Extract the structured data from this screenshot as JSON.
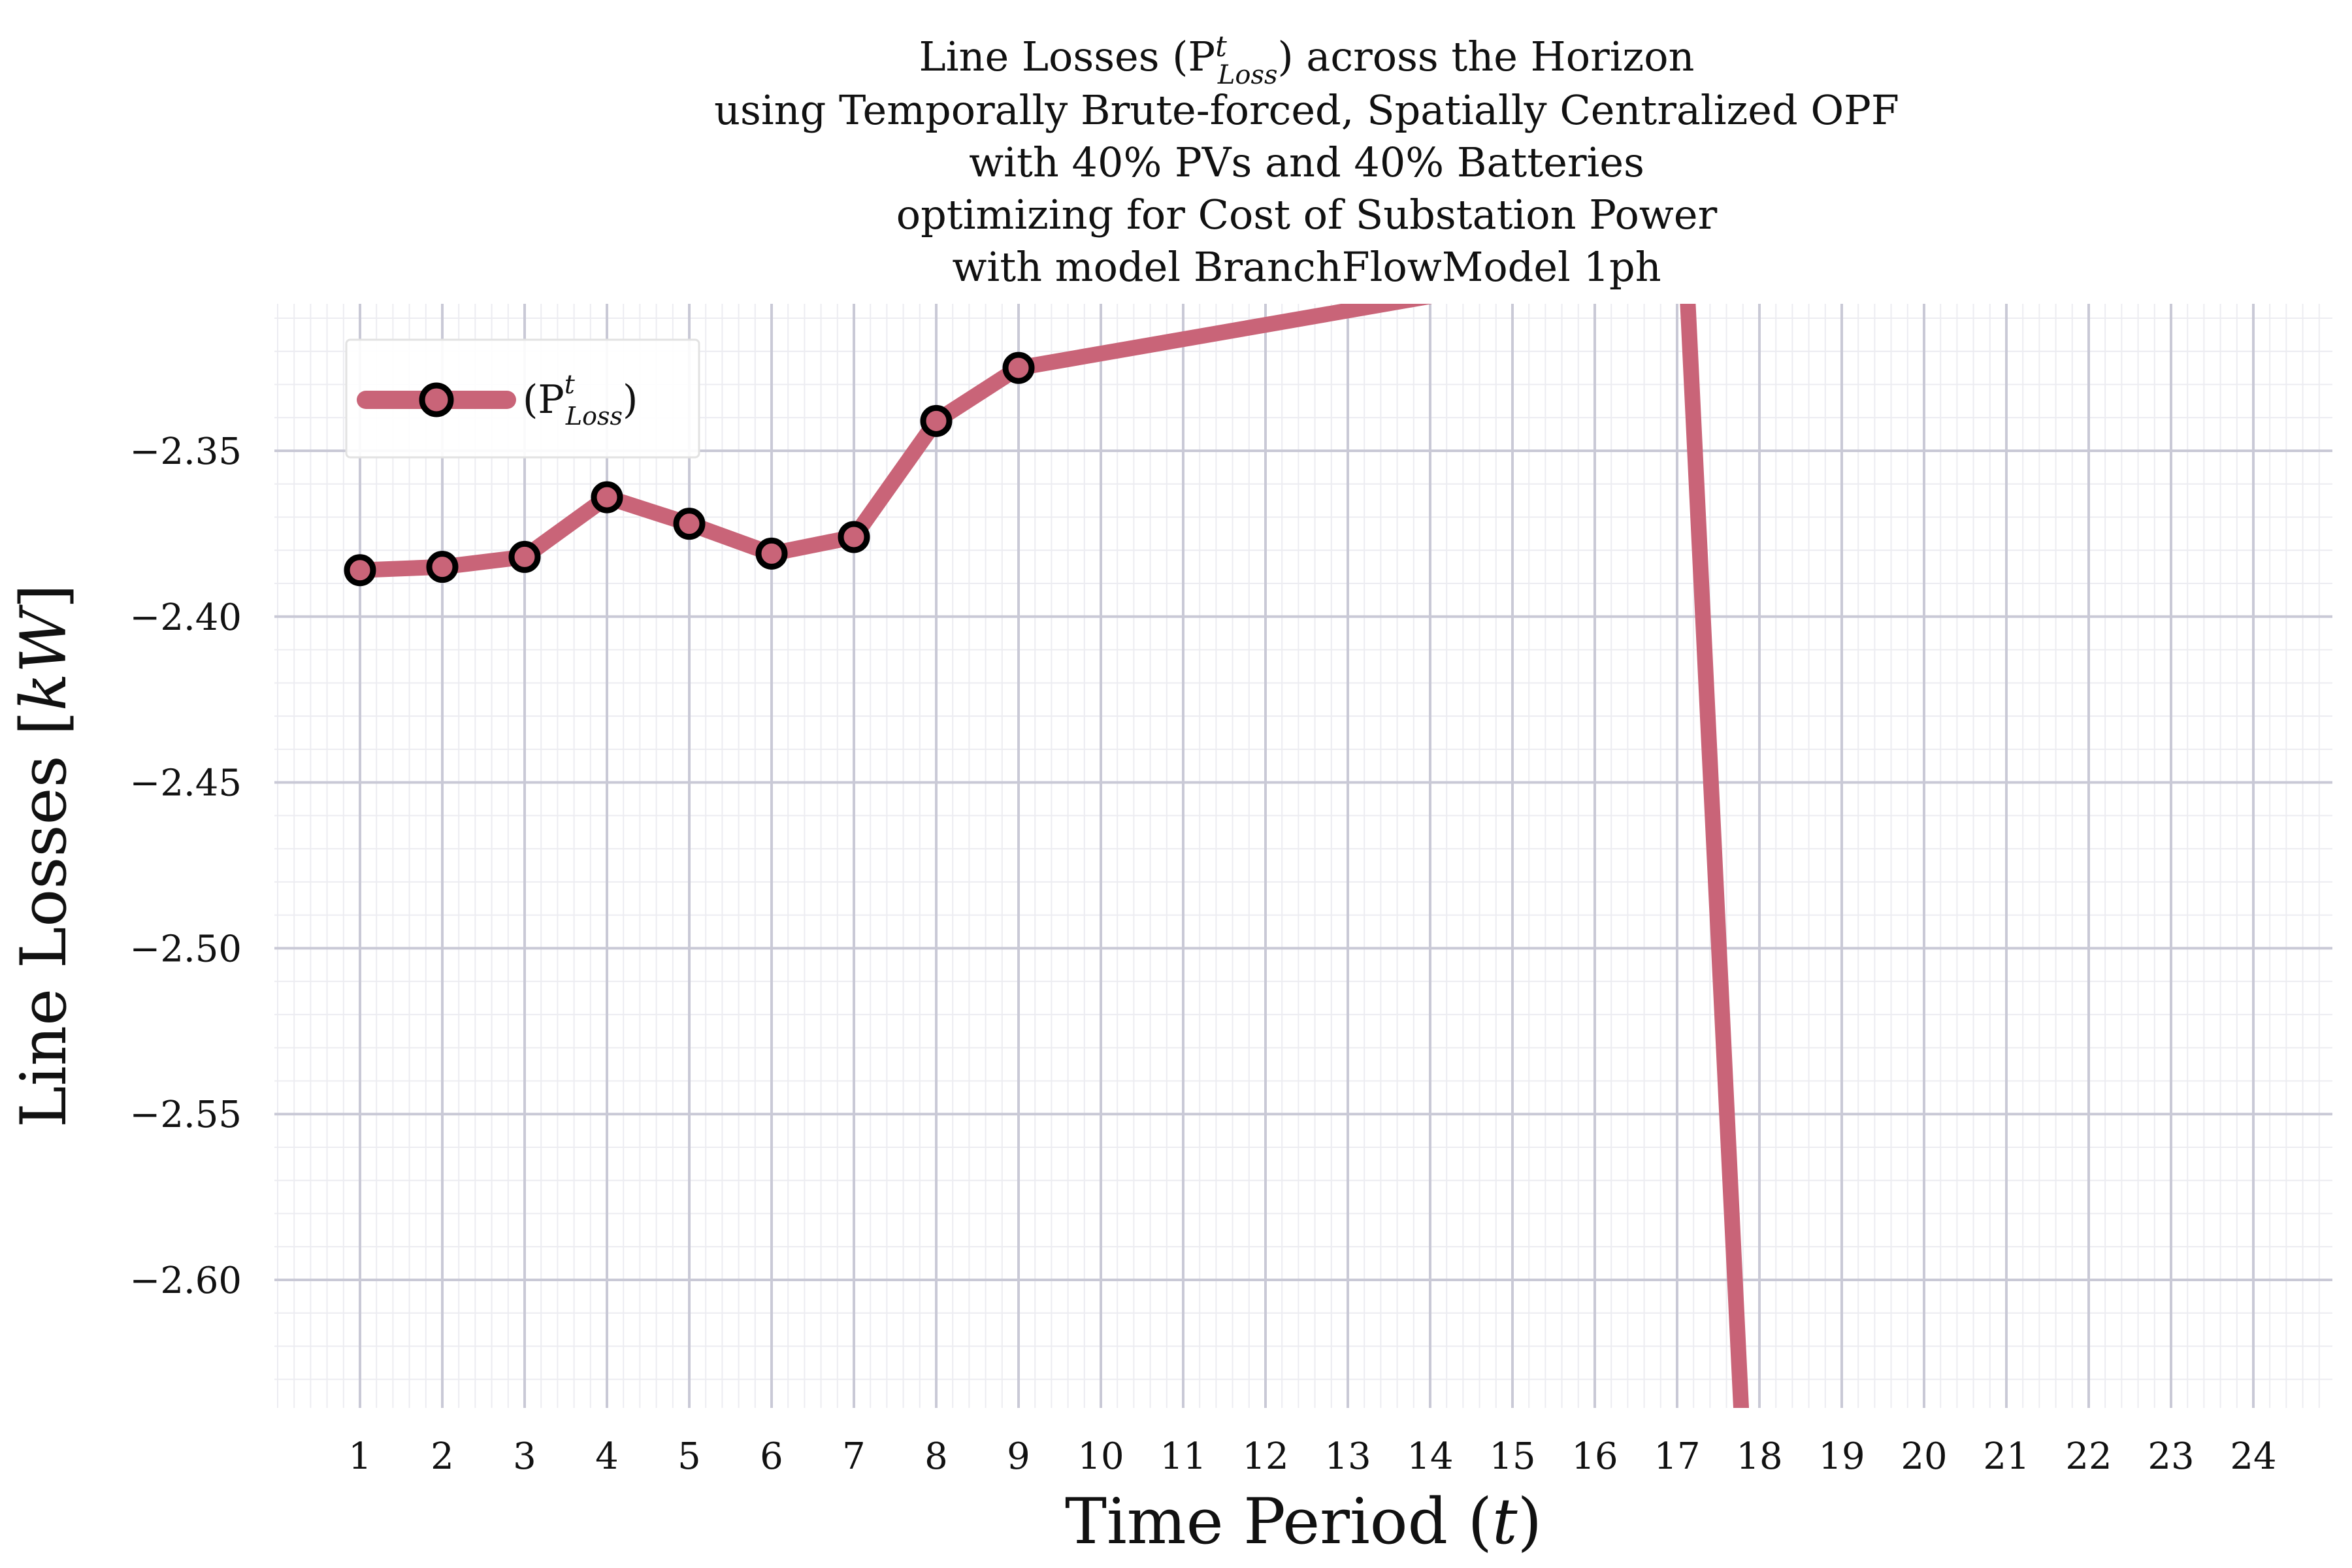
{
  "chart_data": {
    "type": "line",
    "title": [
      "Line Losses (P^t_Loss) across the Horizon",
      "using Temporally Brute-forced, Spatially Centralized OPF",
      "with 40% PVs and 40% Batteries",
      "optimizing for Cost of Substation Power",
      "with model BranchFlowModel 1ph"
    ],
    "title_parts": {
      "line1_prefix": "Line Losses (P",
      "line1_sup": "t",
      "line1_sub": "Loss",
      "line1_suffix": ") across the Horizon"
    },
    "xlabel": "Time Period (t)",
    "xlabel_parts": {
      "prefix": "Time Period (",
      "var": "t",
      "suffix": ")"
    },
    "ylabel": "Line Losses [kW]",
    "ylabel_parts": {
      "prefix": "Line Losses [",
      "var": "kW",
      "suffix": "]"
    },
    "x_ticks": [
      "1",
      "2",
      "3",
      "4",
      "5",
      "6",
      "7",
      "8",
      "9",
      "10",
      "11",
      "12",
      "13",
      "14",
      "15",
      "16",
      "17",
      "18",
      "19",
      "20",
      "21",
      "22",
      "23",
      "24"
    ],
    "y_ticks": [
      {
        "value": -2.35,
        "label": "−2.35"
      },
      {
        "value": -2.4,
        "label": "−2.40"
      },
      {
        "value": -2.45,
        "label": "−2.45"
      },
      {
        "value": -2.5,
        "label": "−2.50"
      },
      {
        "value": -2.55,
        "label": "−2.55"
      },
      {
        "value": -2.6,
        "label": "−2.60"
      }
    ],
    "xlim": [
      0,
      25.0
    ],
    "ylim": [
      -2.64,
      -2.306
    ],
    "grid": true,
    "legend_position": "top-left",
    "series": [
      {
        "name": "(P^t_Loss)",
        "legend_parts": {
          "prefix": "(P",
          "sup": "t",
          "sub": "Loss",
          "suffix": ")"
        },
        "color": "#c96478",
        "marker_fill": "#c96478",
        "marker_edge": "#000000",
        "x": [
          1,
          2,
          3,
          4,
          5,
          6,
          7,
          8,
          9,
          17.1,
          17.8
        ],
        "y": [
          -2.386,
          -2.385,
          -2.382,
          -2.364,
          -2.372,
          -2.381,
          -2.376,
          -2.341,
          -2.325,
          -2.29,
          -2.65
        ],
        "marker_indices": [
          0,
          1,
          2,
          3,
          4,
          5,
          6,
          7,
          8
        ]
      }
    ],
    "colors": {
      "major_grid": "#c9c9d6",
      "minor_grid": "#ececf1",
      "line": "#c96478"
    }
  }
}
